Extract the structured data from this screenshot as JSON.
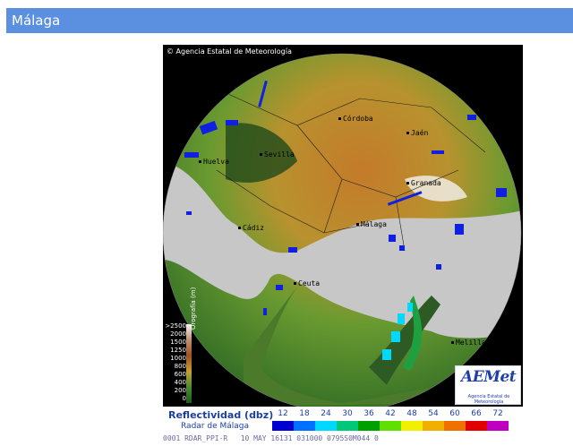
{
  "header": {
    "title": "Málaga"
  },
  "radar": {
    "copyright": "© Agencia Estatal de Meteorología",
    "cities": [
      {
        "id": "cordoba",
        "name": "Córdoba"
      },
      {
        "id": "jaen",
        "name": "Jaén"
      },
      {
        "id": "sevilla",
        "name": "Sevilla"
      },
      {
        "id": "huelva",
        "name": "Huelva"
      },
      {
        "id": "granada",
        "name": "Granada"
      },
      {
        "id": "malaga",
        "name": "Málaga"
      },
      {
        "id": "cadiz",
        "name": "Cádiz"
      },
      {
        "id": "ceuta",
        "name": "Ceuta"
      },
      {
        "id": "melilla",
        "name": "Melilla"
      }
    ],
    "orography": {
      "title": "Orografía (m)",
      "ticks": [
        ">2500",
        "2000",
        "1500",
        "1250",
        "1000",
        "800",
        "600",
        "400",
        "200",
        "0"
      ]
    }
  },
  "legend": {
    "title": "Reflectividad (dbz)",
    "subtitle": "Radar de Málaga",
    "values": [
      "12",
      "18",
      "24",
      "30",
      "36",
      "42",
      "48",
      "54",
      "60",
      "66",
      "72"
    ],
    "colors": [
      "#0000d0",
      "#0070ff",
      "#00d8ff",
      "#00c878",
      "#00a000",
      "#60e000",
      "#f0f000",
      "#f0b000",
      "#f07000",
      "#e00000",
      "#c000c0"
    ]
  },
  "status": {
    "text": "0001 RDAR_PPI-R   10 MAY 16131 031000 0795S0M044 0"
  },
  "logo": {
    "text": "AEMet",
    "subtitle": "Agencia Estatal de Meteorología"
  }
}
